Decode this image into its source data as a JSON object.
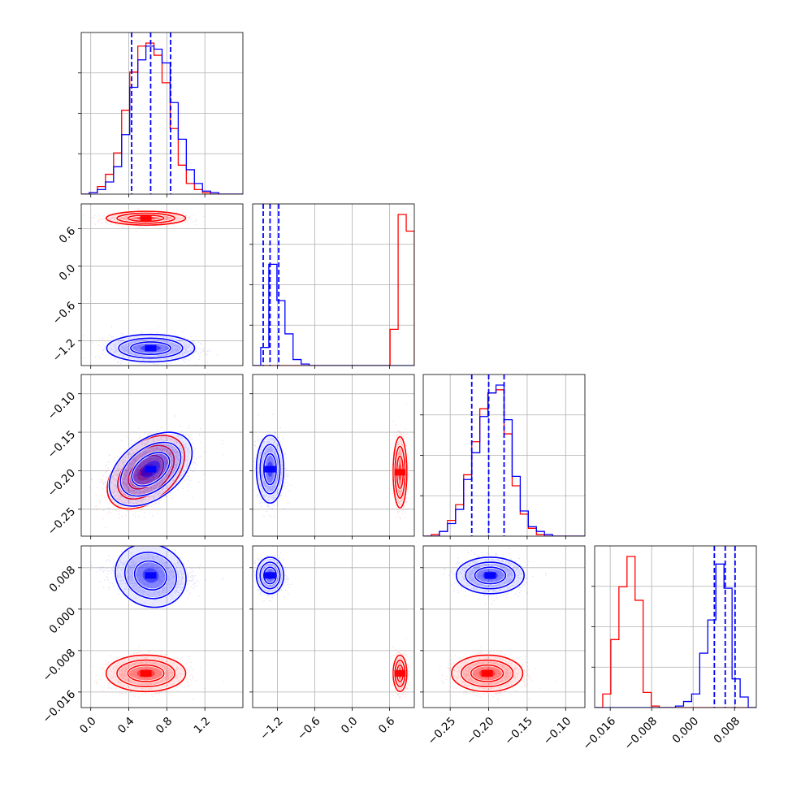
{
  "chart_data": {
    "type": "corner",
    "grid": true,
    "series": [
      {
        "name": "",
        "color": "#ff0000"
      },
      {
        "name": "",
        "color": "#0000ff"
      }
    ],
    "parameters": [
      {
        "range": [
          -0.1,
          1.6
        ],
        "ticks": [
          0.0,
          0.4,
          0.8,
          1.2
        ],
        "tick_labels": [
          "0.0",
          "0.4",
          "0.8",
          "1.2"
        ]
      },
      {
        "range": [
          -1.6,
          1.0
        ],
        "ticks": [
          -1.2,
          -0.6,
          0.0,
          0.6
        ],
        "tick_labels": [
          "−1.2",
          "−0.6",
          "0.0",
          "0.6"
        ]
      },
      {
        "range": [
          -0.285,
          -0.075
        ],
        "ticks": [
          -0.25,
          -0.2,
          -0.15,
          -0.1
        ],
        "tick_labels": [
          "−0.25",
          "−0.20",
          "−0.15",
          "−0.10"
        ]
      },
      {
        "range": [
          -0.019,
          0.0122
        ],
        "ticks": [
          -0.016,
          -0.008,
          0.0,
          0.008
        ],
        "tick_labels": [
          "−0.016",
          "−0.008",
          "0.000",
          "0.008"
        ]
      }
    ],
    "quantile_lines": [
      {
        "parameter": 0,
        "series": 1,
        "values": [
          0.43,
          0.63,
          0.84
        ]
      },
      {
        "parameter": 1,
        "series": 1,
        "values": [
          -1.43,
          -1.32,
          -1.18
        ]
      },
      {
        "parameter": 2,
        "series": 1,
        "values": [
          -0.222,
          -0.2,
          -0.18
        ]
      },
      {
        "parameter": 3,
        "series": 1,
        "values": [
          0.0041,
          0.0062,
          0.0081
        ]
      }
    ],
    "histograms": [
      {
        "parameter": 0,
        "bin_edges": [
          -0.1,
          -0.015,
          0.07,
          0.155,
          0.24,
          0.325,
          0.41,
          0.495,
          0.58,
          0.665,
          0.75,
          0.835,
          0.92,
          1.005,
          1.09,
          1.175,
          1.26,
          1.345,
          1.43,
          1.515,
          1.6
        ],
        "counts": [
          [
            0.0,
            0.01,
            0.05,
            0.13,
            0.27,
            0.55,
            0.8,
            0.97,
            0.99,
            0.91,
            0.73,
            0.43,
            0.19,
            0.07,
            0.03,
            0.01,
            0.0,
            0.0,
            0.0,
            0.0
          ],
          [
            0.0,
            0.01,
            0.03,
            0.08,
            0.18,
            0.39,
            0.7,
            0.88,
            0.97,
            0.95,
            0.86,
            0.6,
            0.36,
            0.16,
            0.07,
            0.02,
            0.01,
            0.0,
            0.0,
            0.0
          ]
        ]
      },
      {
        "parameter": 1,
        "bin_edges": [
          -1.6,
          -1.47,
          -1.34,
          -1.21,
          -1.08,
          -0.95,
          -0.82,
          -0.69,
          -0.56,
          -0.43,
          -0.3,
          -0.17,
          -0.04,
          0.09,
          0.22,
          0.35,
          0.48,
          0.61,
          0.74,
          0.87,
          1.0
        ],
        "counts": [
          [
            0.0,
            0.0,
            0.0,
            0.0,
            0.0,
            0.0,
            0.0,
            0.0,
            0.0,
            0.0,
            0.0,
            0.0,
            0.0,
            0.0,
            0.0,
            0.0,
            0.0,
            0.24,
            1.0,
            0.89
          ],
          [
            0.0,
            0.12,
            0.67,
            0.43,
            0.21,
            0.04,
            0.01,
            0.0,
            0.0,
            0.0,
            0.0,
            0.0,
            0.0,
            0.0,
            0.0,
            0.0,
            0.0,
            0.0,
            0.0,
            0.0
          ]
        ]
      },
      {
        "parameter": 2,
        "bin_edges": [
          -0.285,
          -0.2745,
          -0.264,
          -0.2535,
          -0.243,
          -0.2325,
          -0.222,
          -0.2115,
          -0.201,
          -0.1905,
          -0.18,
          -0.1695,
          -0.159,
          -0.1485,
          -0.138,
          -0.1275,
          -0.117,
          -0.1065,
          -0.096,
          -0.0855,
          -0.075
        ],
        "counts": [
          [
            0.0,
            0.01,
            0.03,
            0.1,
            0.2,
            0.39,
            0.6,
            0.81,
            0.91,
            0.93,
            0.65,
            0.32,
            0.14,
            0.05,
            0.01,
            0.0,
            0.0,
            0.0,
            0.0,
            0.0
          ],
          [
            0.0,
            0.0,
            0.03,
            0.08,
            0.17,
            0.36,
            0.53,
            0.76,
            0.91,
            0.96,
            0.74,
            0.38,
            0.16,
            0.06,
            0.03,
            0.01,
            0.0,
            0.0,
            0.0,
            0.0
          ]
        ]
      },
      {
        "parameter": 3,
        "bin_edges": [
          -0.019,
          -0.01744,
          -0.01588,
          -0.01432,
          -0.01276,
          -0.0112,
          -0.00964,
          -0.00808,
          -0.00652,
          -0.00496,
          -0.0034,
          -0.00184,
          -0.00028,
          0.00128,
          0.00284,
          0.0044,
          0.00596,
          0.00752,
          0.00908,
          0.01064,
          0.0122
        ],
        "counts": [
          [
            0.0,
            0.09,
            0.45,
            0.8,
            1.0,
            0.71,
            0.1,
            0.01,
            0.0,
            0.0,
            0.0,
            0.0,
            0.0,
            0.0,
            0.0,
            0.0,
            0.0,
            0.0,
            0.0,
            0.0
          ],
          [
            0.0,
            0.0,
            0.0,
            0.0,
            0.0,
            0.0,
            0.0,
            0.0,
            0.0,
            0.0,
            0.01,
            0.04,
            0.09,
            0.36,
            0.58,
            0.95,
            0.79,
            0.19,
            0.07,
            0.0
          ]
        ]
      }
    ],
    "pairs": [
      {
        "x_param": 0,
        "y_param": 1,
        "clusters": [
          {
            "series": 0,
            "center": [
              0.58,
              0.77
            ],
            "sigma": [
              0.19,
              0.05
            ],
            "rho": 0.0
          },
          {
            "series": 1,
            "center": [
              0.63,
              -1.32
            ],
            "sigma": [
              0.21,
              0.1
            ],
            "rho": 0.0
          }
        ]
      },
      {
        "x_param": 0,
        "y_param": 2,
        "clusters": [
          {
            "series": 0,
            "center": [
              0.58,
              -0.202
            ],
            "sigma": [
              0.19,
              0.021
            ],
            "rho": 0.45
          },
          {
            "series": 1,
            "center": [
              0.63,
              -0.198
            ],
            "sigma": [
              0.21,
              0.02
            ],
            "rho": 0.45
          }
        ]
      },
      {
        "x_param": 1,
        "y_param": 2,
        "clusters": [
          {
            "series": 0,
            "center": [
              0.77,
              -0.202
            ],
            "sigma": [
              0.05,
              0.021
            ],
            "rho": 0.0
          },
          {
            "series": 1,
            "center": [
              -1.32,
              -0.198
            ],
            "sigma": [
              0.1,
              0.02
            ],
            "rho": 0.0
          }
        ]
      },
      {
        "x_param": 0,
        "y_param": 3,
        "clusters": [
          {
            "series": 0,
            "center": [
              0.58,
              -0.0124
            ],
            "sigma": [
              0.19,
              0.0016
            ],
            "rho": 0.0
          },
          {
            "series": 1,
            "center": [
              0.63,
              0.0065
            ],
            "sigma": [
              0.21,
              0.0016
            ],
            "rho": -0.15
          }
        ]
      },
      {
        "x_param": 1,
        "y_param": 3,
        "clusters": [
          {
            "series": 0,
            "center": [
              0.77,
              -0.0124
            ],
            "sigma": [
              0.05,
              0.0016
            ],
            "rho": 0.0
          },
          {
            "series": 1,
            "center": [
              -1.32,
              0.0065
            ],
            "sigma": [
              0.1,
              0.0016
            ],
            "rho": 0.0
          }
        ]
      },
      {
        "x_param": 2,
        "y_param": 3,
        "clusters": [
          {
            "series": 0,
            "center": [
              -0.202,
              -0.0124
            ],
            "sigma": [
              0.021,
              0.0016
            ],
            "rho": 0.0
          },
          {
            "series": 1,
            "center": [
              -0.198,
              0.0065
            ],
            "sigma": [
              0.02,
              0.0016
            ],
            "rho": 0.0
          }
        ]
      }
    ]
  }
}
